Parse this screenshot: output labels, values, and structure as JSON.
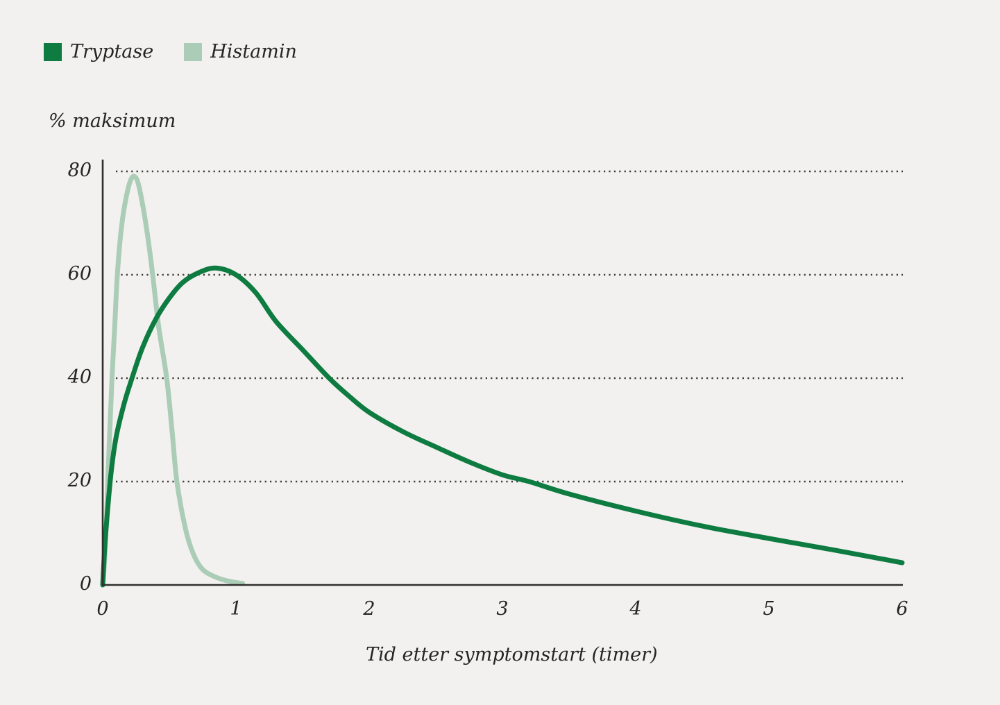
{
  "legend": {
    "items": [
      {
        "label": "Tryptase",
        "color": "#0e7b41"
      },
      {
        "label": "Histamin",
        "color": "#abccb7"
      }
    ]
  },
  "colors": {
    "background": "#f2f1ef",
    "axis": "#2f2e2b",
    "grid_dots": "#3b3a37",
    "text": "#272522",
    "tryptase": "#0e7b41",
    "histamin": "#abccb7"
  },
  "chart_data": {
    "type": "line",
    "title": "",
    "ylabel": "% maksimum",
    "xlabel": "Tid etter symptomstart (timer)",
    "xlim": [
      0,
      6
    ],
    "ylim": [
      0,
      80
    ],
    "x_ticks": [
      0,
      1,
      2,
      3,
      4,
      5,
      6
    ],
    "y_ticks": [
      0,
      20,
      40,
      60,
      80
    ],
    "grid": "horizontal dotted lines at y = 20, 40, 60, 80",
    "legend_position": "top-left",
    "series": [
      {
        "name": "Histamin",
        "color": "#abccb7",
        "peak": {
          "x": 0.22,
          "y": 79
        },
        "points": [
          [
            0,
            0
          ],
          [
            0.015,
            5
          ],
          [
            0.03,
            14
          ],
          [
            0.05,
            28
          ],
          [
            0.07,
            40
          ],
          [
            0.09,
            50
          ],
          [
            0.11,
            60
          ],
          [
            0.14,
            69
          ],
          [
            0.18,
            75.5
          ],
          [
            0.22,
            78.8
          ],
          [
            0.26,
            78.2
          ],
          [
            0.3,
            73.5
          ],
          [
            0.34,
            67
          ],
          [
            0.375,
            60
          ],
          [
            0.42,
            50
          ],
          [
            0.48,
            40
          ],
          [
            0.52,
            30
          ],
          [
            0.557,
            20
          ],
          [
            0.62,
            11
          ],
          [
            0.68,
            6
          ],
          [
            0.75,
            3
          ],
          [
            0.85,
            1.5
          ],
          [
            0.95,
            0.7
          ],
          [
            1.05,
            0.3
          ]
        ]
      },
      {
        "name": "Tryptase",
        "color": "#0e7b41",
        "peak": {
          "x": 0.85,
          "y": 61
        },
        "points": [
          [
            0,
            0
          ],
          [
            0.02,
            9
          ],
          [
            0.06,
            21
          ],
          [
            0.1,
            28.5
          ],
          [
            0.16,
            35
          ],
          [
            0.22,
            40
          ],
          [
            0.3,
            46
          ],
          [
            0.4,
            51.5
          ],
          [
            0.5,
            55.5
          ],
          [
            0.6,
            58.5
          ],
          [
            0.72,
            60.4
          ],
          [
            0.85,
            61.3
          ],
          [
            1.0,
            60
          ],
          [
            1.15,
            56.5
          ],
          [
            1.3,
            51
          ],
          [
            1.5,
            45.5
          ],
          [
            1.7,
            40
          ],
          [
            1.85,
            36.5
          ],
          [
            2.0,
            33.4
          ],
          [
            2.25,
            29.7
          ],
          [
            2.5,
            26.7
          ],
          [
            2.75,
            23.8
          ],
          [
            3.0,
            21.3
          ],
          [
            3.2,
            20
          ],
          [
            3.5,
            17.6
          ],
          [
            4.0,
            14.3
          ],
          [
            4.5,
            11.4
          ],
          [
            5.0,
            9.0
          ],
          [
            5.5,
            6.7
          ],
          [
            6.0,
            4.3
          ]
        ]
      }
    ]
  }
}
